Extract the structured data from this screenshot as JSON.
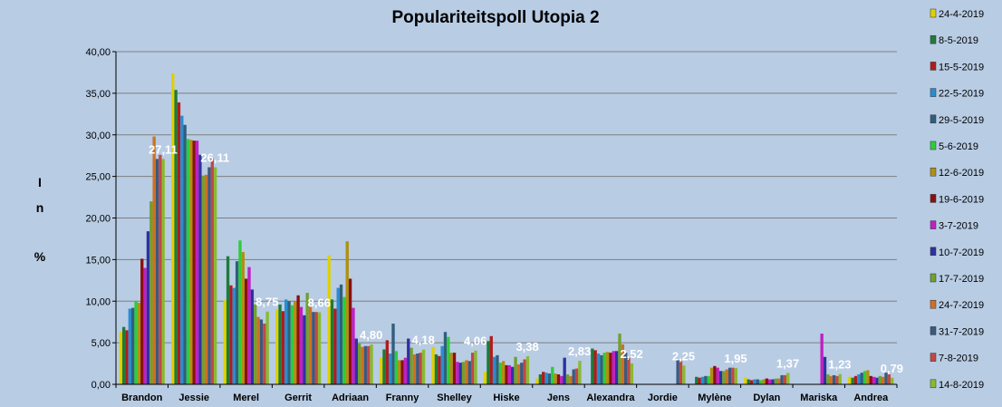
{
  "chart_data": {
    "type": "bar",
    "title": "Populariteitspoll Utopia 2",
    "ylabel": [
      "I",
      "n",
      "%"
    ],
    "ylim": [
      0,
      40
    ],
    "ytick_labels": [
      "0,00",
      "5,00",
      "10,00",
      "15,00",
      "20,00",
      "25,00",
      "30,00",
      "35,00",
      "40,00"
    ],
    "grid": true,
    "legend_position": "right",
    "categories": [
      "Brandon",
      "Jessie",
      "Merel",
      "Gerrit",
      "Adriaan",
      "Franny",
      "Shelley",
      "Hiske",
      "Jens",
      "Alexandra",
      "Jordie",
      "Mylène",
      "Dylan",
      "Mariska",
      "Andrea"
    ],
    "data_labels": [
      "27,11",
      "26,11",
      "8,75",
      "8,66",
      "4,80",
      "4,18",
      "4,06",
      "3,38",
      "2,83",
      "2,52",
      "2,25",
      "1,95",
      "1,37",
      "1,23",
      "0,79"
    ],
    "series": [
      {
        "name": "24-4-2019",
        "color": "#e0d000",
        "values": [
          6.3,
          37.4,
          10.1,
          9.0,
          15.5,
          3.2,
          4.5,
          1.5,
          0.7,
          null,
          null,
          null,
          0.8,
          null,
          0.9
        ]
      },
      {
        "name": "8-5-2019",
        "color": "#1f7a3a",
        "values": [
          6.9,
          35.4,
          15.4,
          9.6,
          10.2,
          4.2,
          3.6,
          5.2,
          1.2,
          4.3,
          null,
          0.9,
          0.6,
          null,
          0.8
        ]
      },
      {
        "name": "15-5-2019",
        "color": "#b01c1c",
        "values": [
          6.5,
          33.9,
          11.9,
          8.8,
          9.1,
          5.3,
          3.4,
          5.8,
          1.5,
          4.1,
          null,
          0.8,
          0.5,
          null,
          1.0
        ]
      },
      {
        "name": "22-5-2019",
        "color": "#2a8ccf",
        "values": [
          9.1,
          32.3,
          11.6,
          10.2,
          11.6,
          3.7,
          4.6,
          3.3,
          1.4,
          3.7,
          null,
          0.9,
          0.6,
          null,
          1.2
        ]
      },
      {
        "name": "29-5-2019",
        "color": "#2f5f7e",
        "values": [
          9.2,
          31.2,
          14.8,
          10.0,
          12.0,
          7.3,
          6.3,
          3.5,
          1.3,
          3.5,
          null,
          1.0,
          0.6,
          null,
          1.4
        ]
      },
      {
        "name": "5-6-2019",
        "color": "#2ecc3a",
        "values": [
          10.0,
          29.5,
          17.3,
          9.5,
          10.5,
          4.0,
          5.7,
          2.6,
          2.1,
          3.8,
          null,
          1.0,
          0.5,
          null,
          1.6
        ]
      },
      {
        "name": "12-6-2019",
        "color": "#b09010",
        "values": [
          9.8,
          29.4,
          15.9,
          10.0,
          17.2,
          2.9,
          3.8,
          2.8,
          1.3,
          3.9,
          null,
          2.0,
          0.6,
          null,
          1.7
        ]
      },
      {
        "name": "19-6-2019",
        "color": "#8a1010",
        "values": [
          15.1,
          29.3,
          12.7,
          10.7,
          12.7,
          2.9,
          3.8,
          2.3,
          1.2,
          3.8,
          null,
          2.2,
          0.7,
          null,
          1.0
        ]
      },
      {
        "name": "3-7-2019",
        "color": "#c020c0",
        "values": [
          14.0,
          29.3,
          14.1,
          9.3,
          9.2,
          3.2,
          2.7,
          2.3,
          1.0,
          4.0,
          null,
          2.0,
          0.6,
          6.1,
          0.9
        ]
      },
      {
        "name": "10-7-2019",
        "color": "#3030a0",
        "values": [
          18.4,
          27.6,
          11.4,
          8.3,
          5.5,
          5.5,
          2.6,
          2.1,
          3.2,
          4.0,
          null,
          1.6,
          0.6,
          3.3,
          0.8
        ]
      },
      {
        "name": "17-7-2019",
        "color": "#70a030",
        "values": [
          22.0,
          25.1,
          9.6,
          11.0,
          4.9,
          4.4,
          2.7,
          3.3,
          1.2,
          6.1,
          null,
          1.6,
          0.7,
          1.2,
          1.0
        ]
      },
      {
        "name": "24-7-2019",
        "color": "#d07020",
        "values": [
          29.8,
          25.2,
          8.1,
          9.4,
          4.5,
          3.6,
          2.9,
          2.4,
          1.0,
          4.8,
          null,
          1.8,
          0.7,
          1.0,
          0.9
        ]
      },
      {
        "name": "31-7-2019",
        "color": "#3a5a80",
        "values": [
          27.1,
          26.1,
          7.8,
          8.7,
          4.6,
          3.7,
          2.8,
          2.6,
          1.8,
          3.8,
          2.9,
          2.0,
          1.1,
          1.1,
          1.4
        ]
      },
      {
        "name": "7-8-2019",
        "color": "#c04848",
        "values": [
          27.6,
          27.2,
          7.3,
          8.7,
          4.6,
          3.8,
          3.8,
          3.0,
          1.9,
          3.2,
          2.8,
          2.0,
          1.1,
          1.0,
          1.2
        ]
      },
      {
        "name": "14-8-2019",
        "color": "#88bb30",
        "values": [
          27.1,
          26.1,
          8.75,
          8.66,
          4.8,
          4.18,
          4.06,
          3.38,
          2.83,
          2.52,
          2.25,
          1.95,
          1.37,
          1.23,
          0.79
        ]
      }
    ]
  }
}
